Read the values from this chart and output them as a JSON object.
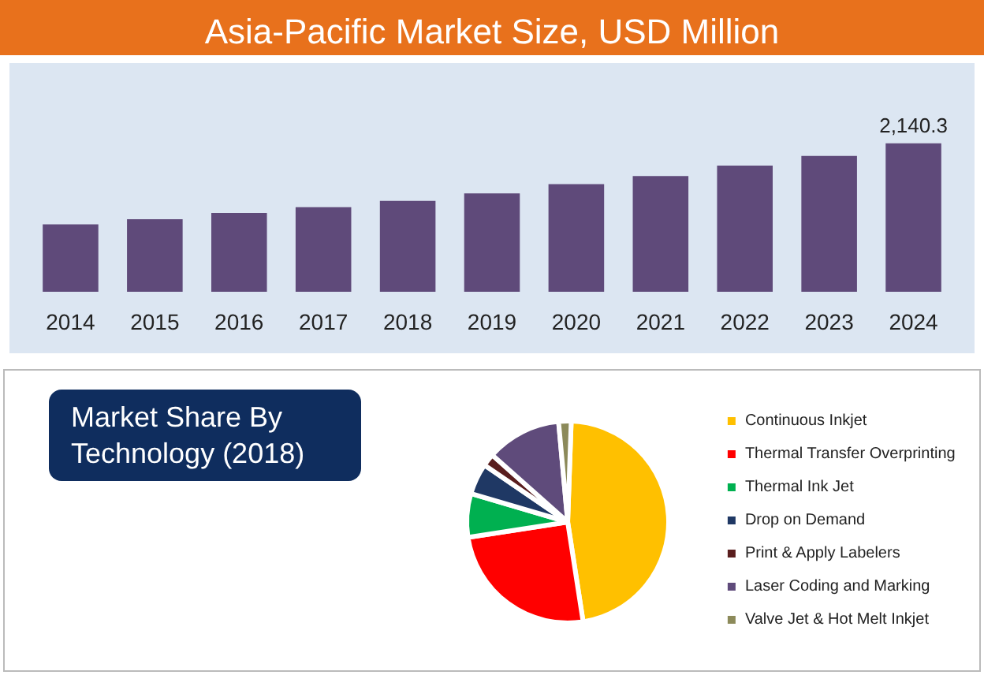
{
  "chart_data": [
    {
      "type": "bar",
      "title": "Asia-Pacific Market Size, USD Million",
      "categories": [
        "2014",
        "2015",
        "2016",
        "2017",
        "2018",
        "2019",
        "2020",
        "2021",
        "2022",
        "2023",
        "2024"
      ],
      "values": [
        971,
        1045,
        1137,
        1220,
        1311,
        1419,
        1551,
        1668,
        1817,
        1958,
        2140.3
      ],
      "value_labels": [
        null,
        null,
        null,
        null,
        null,
        null,
        null,
        null,
        null,
        null,
        "2,140.3"
      ],
      "color": "#5f4a7a",
      "grid": false,
      "legend": false
    },
    {
      "type": "pie",
      "title": "Market Share By Technology (2018)",
      "categories": [
        "Continuous Inkjet",
        "Thermal Transfer Overprinting",
        "Thermal Ink Jet",
        "Drop on Demand",
        "Print & Apply Labelers",
        "Laser Coding and Marking",
        "Valve Jet & Hot Melt Inkjet"
      ],
      "values": [
        47,
        25,
        7,
        5,
        2,
        12,
        2
      ],
      "colors": [
        "#ffc000",
        "#ff0000",
        "#00b050",
        "#1f3864",
        "#5a1e1e",
        "#5f4b7b",
        "#8c8a5a"
      ],
      "legend": "right"
    }
  ]
}
